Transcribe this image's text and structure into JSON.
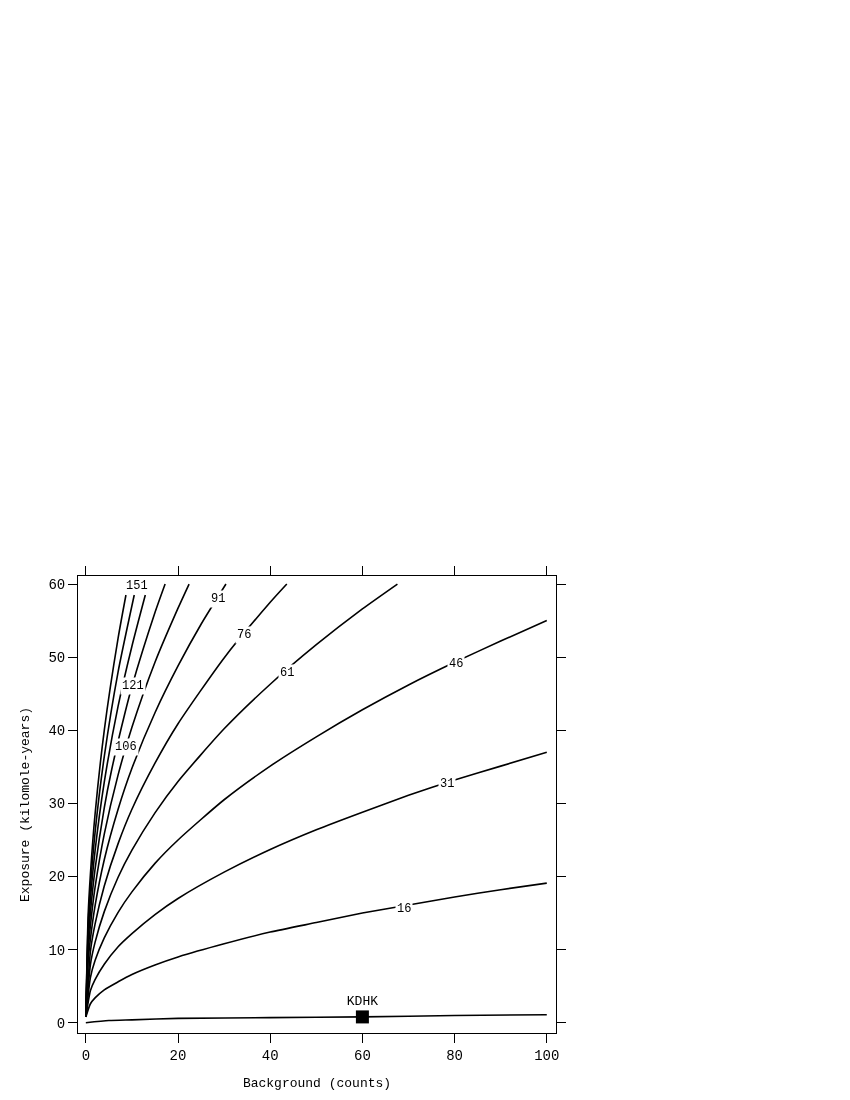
{
  "chart_data": {
    "type": "line",
    "xlabel": "Background (counts)",
    "ylabel": "Exposure (kilomole-years)",
    "xlim": [
      -1.7,
      102
    ],
    "xticks": [
      0,
      20,
      40,
      60,
      80,
      100
    ],
    "ylim": [
      -1.4,
      61.1
    ],
    "yticks": [
      0,
      10,
      20,
      30,
      40,
      50,
      60
    ],
    "legend": false,
    "line_style": "solid",
    "series": [
      {
        "color": "#000000",
        "x": [
          0,
          5,
          10,
          20,
          40,
          60,
          80,
          100
        ],
        "values": [
          0,
          0.3,
          0.4,
          0.6,
          0.7,
          0.8,
          1.0,
          1.1
        ]
      },
      {
        "color": "#000000",
        "x": [
          0,
          1,
          2,
          4,
          7,
          10,
          15,
          20,
          30,
          40,
          50,
          60,
          70,
          80,
          90,
          100
        ],
        "values": [
          0.8,
          2.6,
          3.4,
          4.5,
          5.6,
          6.6,
          7.9,
          9.0,
          10.8,
          12.4,
          13.7,
          15.0,
          16.1,
          17.2,
          18.2,
          19.1
        ]
      },
      {
        "color": "#000000",
        "x": [
          0,
          1,
          2,
          4,
          7,
          10,
          15,
          20,
          30,
          40,
          50,
          60,
          70,
          80,
          90,
          100
        ],
        "values": [
          0.8,
          4.4,
          5.9,
          8.0,
          10.4,
          12.2,
          14.8,
          17.0,
          20.6,
          23.7,
          26.4,
          28.8,
          31.1,
          33.2,
          35.1,
          37.0
        ]
      },
      {
        "color": "#000000",
        "x": [
          0,
          1,
          2,
          4,
          7,
          10,
          15,
          20,
          30,
          40,
          50,
          60,
          70,
          80,
          90,
          100
        ],
        "values": [
          0.8,
          6.2,
          8.5,
          11.6,
          15.1,
          17.9,
          21.8,
          25.0,
          30.5,
          35.1,
          39.1,
          42.8,
          46.2,
          49.3,
          52.2,
          55.0
        ]
      },
      {
        "color": "#000000",
        "x": [
          0,
          1,
          2,
          4,
          7,
          10,
          15,
          20,
          30,
          40,
          50,
          60,
          67.6
        ],
        "values": [
          0.8,
          8.0,
          11.0,
          15.2,
          19.9,
          23.6,
          28.7,
          33.0,
          40.2,
          46.3,
          51.7,
          56.6,
          60
        ]
      },
      {
        "color": "#000000",
        "x": [
          0,
          1,
          2,
          4,
          7,
          10,
          15,
          20,
          30,
          40,
          43.6
        ],
        "values": [
          0.8,
          9.8,
          13.5,
          18.7,
          24.5,
          29.2,
          35.5,
          40.9,
          49.9,
          57.5,
          60
        ]
      },
      {
        "color": "#000000",
        "x": [
          0,
          0.5,
          1,
          2,
          4,
          7,
          10,
          15,
          20,
          25,
          30.4
        ],
        "values": [
          0.8,
          8.4,
          11.5,
          16.0,
          22.3,
          29.2,
          34.8,
          42.4,
          48.8,
          54.5,
          60
        ]
      },
      {
        "color": "#000000",
        "x": [
          0,
          0.5,
          1,
          2,
          4,
          7,
          10,
          15,
          20,
          22.4
        ],
        "values": [
          0.8,
          9.6,
          13.3,
          18.5,
          25.8,
          33.9,
          40.4,
          49.3,
          56.7,
          60
        ]
      },
      {
        "color": "#000000",
        "x": [
          0,
          0.5,
          1,
          2,
          4,
          5.5,
          8.5,
          10,
          15,
          17.2
        ],
        "values": [
          0.8,
          10.9,
          15.1,
          21.0,
          29.4,
          34.3,
          42.4,
          46.0,
          56.1,
          60
        ]
      },
      {
        "color": "#000000",
        "x": [
          0,
          0.5,
          1,
          2,
          4,
          7,
          10,
          12.9
        ],
        "values": [
          0.8,
          12.1,
          16.9,
          23.5,
          32.9,
          43.3,
          51.5,
          58.5
        ]
      },
      {
        "color": "#000000",
        "x": [
          0,
          0.5,
          1,
          2,
          4,
          7,
          10.5
        ],
        "values": [
          0.8,
          13.4,
          18.6,
          26.0,
          36.4,
          48.0,
          58.5
        ]
      },
      {
        "color": "#000000",
        "x": [
          0,
          0.5,
          1,
          2,
          4,
          7,
          8.7
        ],
        "values": [
          0.8,
          14.7,
          20.4,
          28.5,
          40.0,
          52.6,
          58.5
        ]
      },
      {
        "name": "KDHK",
        "type": "scatter",
        "marker": "square",
        "color": "#000000",
        "x": [
          60
        ],
        "values": [
          0.8
        ]
      }
    ],
    "annotations": [
      {
        "text": "16",
        "x": 69,
        "y": 15.6
      },
      {
        "text": "31",
        "x": 78.3,
        "y": 32.6
      },
      {
        "text": "46",
        "x": 80.3,
        "y": 49
      },
      {
        "text": "61",
        "x": 43.6,
        "y": 47.9
      },
      {
        "text": "76",
        "x": 34.3,
        "y": 53
      },
      {
        "text": "91",
        "x": 28.6,
        "y": 58
      },
      {
        "text": "106",
        "x": 8.7,
        "y": 37.7
      },
      {
        "text": "121",
        "x": 10.2,
        "y": 46.1
      },
      {
        "text": "151",
        "x": 11,
        "y": 59.7
      }
    ]
  }
}
